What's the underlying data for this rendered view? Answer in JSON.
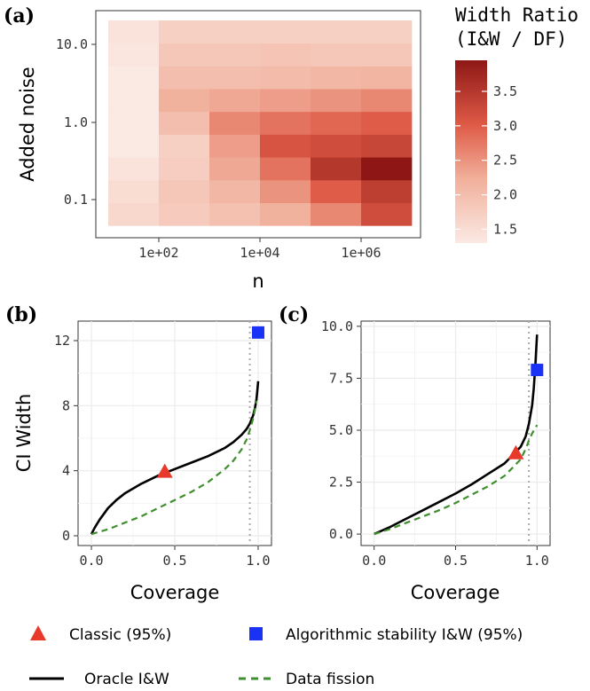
{
  "chart_data": [
    {
      "id": "a",
      "panel_label": "(a)",
      "type": "heatmap",
      "xlabel": "n",
      "ylabel": "Added noise",
      "x_scale": "log10",
      "y_scale": "log10",
      "x_ticks": [
        {
          "value": 100,
          "label": "1e+02"
        },
        {
          "value": 10000,
          "label": "1e+04"
        },
        {
          "value": 1000000,
          "label": "1e+06"
        }
      ],
      "y_ticks": [
        {
          "value": 0.1,
          "label": "0.1"
        },
        {
          "value": 1.0,
          "label": "1.0"
        },
        {
          "value": 10.0,
          "label": "10.0"
        }
      ],
      "n_levels": [
        10,
        100,
        1000,
        10000,
        100000,
        1000000
      ],
      "noise_levels": [
        0.05,
        0.1,
        0.2,
        0.5,
        1.0,
        2.0,
        5.0,
        10.0,
        20.0
      ],
      "values": [
        [
          1.6,
          1.8,
          1.95,
          2.2,
          2.6,
          3.2
        ],
        [
          1.5,
          1.85,
          2.1,
          2.5,
          3.0,
          3.4
        ],
        [
          1.4,
          1.75,
          2.3,
          2.8,
          3.5,
          3.95
        ],
        [
          1.3,
          1.7,
          2.4,
          3.1,
          3.2,
          3.3
        ],
        [
          1.25,
          2.0,
          2.6,
          2.8,
          2.9,
          3.0
        ],
        [
          1.25,
          2.2,
          2.3,
          2.4,
          2.5,
          2.6
        ],
        [
          1.3,
          2.0,
          2.0,
          2.05,
          2.1,
          2.15
        ],
        [
          1.35,
          1.85,
          1.85,
          1.9,
          1.85,
          1.85
        ],
        [
          1.4,
          1.7,
          1.7,
          1.7,
          1.7,
          1.7
        ]
      ],
      "colorbar": {
        "title_line1": "Width Ratio",
        "title_line2": "(I&W / DF)",
        "min": 1.3,
        "max": 3.95,
        "ticks": [
          "1.5",
          "2.0",
          "2.5",
          "3.0",
          "3.5"
        ],
        "low_color": "#fbe9e3",
        "high_color": "#8e1716"
      }
    },
    {
      "id": "b",
      "panel_label": "(b)",
      "type": "line",
      "xlabel": "Coverage",
      "ylabel": "CI Width",
      "xlim": [
        -0.08,
        1.08
      ],
      "ylim": [
        -0.6,
        13.2
      ],
      "x_ticks": [
        "0.0",
        "0.5",
        "1.0"
      ],
      "y_ticks": [
        "0",
        "4",
        "8",
        "12"
      ],
      "reference_line_x": 0.95,
      "series": [
        {
          "key": "oracle",
          "x": [
            0.0,
            0.02,
            0.05,
            0.1,
            0.15,
            0.2,
            0.3,
            0.4,
            0.5,
            0.6,
            0.7,
            0.8,
            0.85,
            0.9,
            0.93,
            0.95,
            0.97,
            0.98,
            0.99,
            0.995,
            1.0
          ],
          "y": [
            0.1,
            0.5,
            1.0,
            1.7,
            2.2,
            2.6,
            3.2,
            3.7,
            4.1,
            4.5,
            4.9,
            5.4,
            5.75,
            6.2,
            6.55,
            6.9,
            7.4,
            7.8,
            8.4,
            8.9,
            9.5
          ]
        },
        {
          "key": "fission",
          "x": [
            0.0,
            0.1,
            0.2,
            0.3,
            0.4,
            0.5,
            0.6,
            0.7,
            0.8,
            0.85,
            0.9,
            0.93,
            0.95,
            0.97,
            0.98,
            0.99
          ],
          "y": [
            0.1,
            0.4,
            0.8,
            1.2,
            1.7,
            2.2,
            2.7,
            3.3,
            4.1,
            4.6,
            5.3,
            5.9,
            6.5,
            7.2,
            7.7,
            8.3
          ]
        }
      ],
      "classic_point": {
        "x": 0.44,
        "y": 3.95
      },
      "stability_point": {
        "x": 1.0,
        "y": 12.5
      }
    },
    {
      "id": "c",
      "panel_label": "(c)",
      "type": "line",
      "xlabel": "Coverage",
      "ylabel": "",
      "xlim": [
        -0.08,
        1.08
      ],
      "ylim": [
        -0.55,
        10.25
      ],
      "x_ticks": [
        "0.0",
        "0.5",
        "1.0"
      ],
      "y_ticks": [
        "0.0",
        "2.5",
        "5.0",
        "7.5",
        "10.0"
      ],
      "reference_line_x": 0.95,
      "series": [
        {
          "key": "oracle",
          "x": [
            0.0,
            0.1,
            0.2,
            0.3,
            0.4,
            0.5,
            0.6,
            0.7,
            0.8,
            0.85,
            0.9,
            0.93,
            0.95,
            0.97,
            0.98,
            0.99,
            1.0
          ],
          "y": [
            0.0,
            0.35,
            0.75,
            1.15,
            1.55,
            1.95,
            2.4,
            2.9,
            3.4,
            3.8,
            4.2,
            4.7,
            5.3,
            6.2,
            7.0,
            8.2,
            9.6
          ]
        },
        {
          "key": "fission",
          "x": [
            0.0,
            0.1,
            0.2,
            0.3,
            0.4,
            0.5,
            0.6,
            0.7,
            0.8,
            0.85,
            0.9,
            0.93,
            0.95,
            0.97,
            0.99,
            1.0
          ],
          "y": [
            0.0,
            0.25,
            0.55,
            0.85,
            1.15,
            1.5,
            1.9,
            2.3,
            2.8,
            3.2,
            3.6,
            4.1,
            4.5,
            4.85,
            5.1,
            5.25
          ]
        }
      ],
      "classic_point": {
        "x": 0.87,
        "y": 3.9
      },
      "stability_point": {
        "x": 1.0,
        "y": 7.9
      }
    }
  ],
  "legend": {
    "classic": {
      "label": "Classic (95%)",
      "color": "#e8392b"
    },
    "stability": {
      "label": "Algorithmic stability I&W (95%)",
      "color": "#1a32f5"
    },
    "oracle": {
      "label": "Oracle I&W",
      "color": "#000000"
    },
    "fission": {
      "label": "Data fission",
      "color": "#3f8f2e"
    }
  },
  "colors": {
    "panel_background": "#ffffff",
    "grid": "#ebebeb",
    "panel_border": "#333333",
    "reference_line": "#aaaaaa"
  }
}
